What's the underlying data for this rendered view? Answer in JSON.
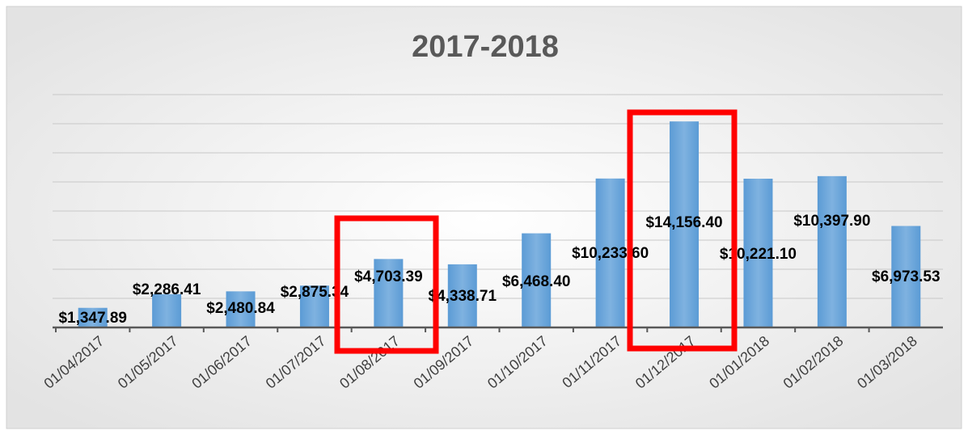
{
  "chart_data": {
    "type": "bar",
    "title": "2017-2018",
    "categories": [
      "01/04/2017",
      "01/05/2017",
      "01/06/2017",
      "01/07/2017",
      "01/08/2017",
      "01/09/2017",
      "01/10/2017",
      "01/11/2017",
      "01/12/2017",
      "01/01/2018",
      "01/02/2018",
      "01/03/2018"
    ],
    "values": [
      1347.89,
      2286.41,
      2480.84,
      2875.34,
      4703.39,
      4338.71,
      6468.4,
      10233.6,
      14156.4,
      10221.1,
      10397.9,
      6973.53
    ],
    "value_labels": [
      "$1,347.89",
      "$2,286.41",
      "$2,480.84",
      "$2,875.34",
      "$4,703.39",
      "$4,338.71",
      "$6,468.40",
      "$10,233.60",
      "$14,156.40",
      "$10,221.10",
      "$10,397.90",
      "$6,973.53"
    ],
    "color": "#6fa8dc",
    "ylim": [
      0,
      16000
    ],
    "yticks": [
      0,
      2000,
      4000,
      6000,
      8000,
      10000,
      12000,
      14000,
      16000
    ],
    "grid": true
  }
}
